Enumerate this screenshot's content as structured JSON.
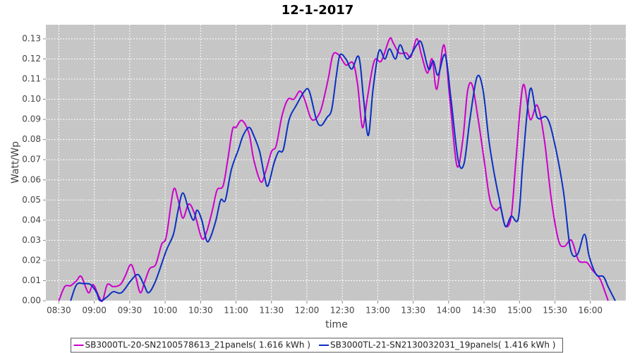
{
  "chart_data": {
    "type": "line",
    "title": "12-1-2017",
    "x_label": "time",
    "y_label": "Watt/Wp",
    "xlim": [
      499,
      990
    ],
    "ylim": [
      0,
      0.137
    ],
    "grid": true,
    "legend": "bottom",
    "xticks": [
      {
        "value": 510,
        "label": "08:30"
      },
      {
        "value": 540,
        "label": "09:00"
      },
      {
        "value": 570,
        "label": "09:30"
      },
      {
        "value": 600,
        "label": "10:00"
      },
      {
        "value": 630,
        "label": "10:30"
      },
      {
        "value": 660,
        "label": "11:00"
      },
      {
        "value": 690,
        "label": "11:30"
      },
      {
        "value": 720,
        "label": "12:00"
      },
      {
        "value": 750,
        "label": "12:30"
      },
      {
        "value": 780,
        "label": "13:00"
      },
      {
        "value": 810,
        "label": "13:30"
      },
      {
        "value": 840,
        "label": "14:00"
      },
      {
        "value": 870,
        "label": "14:30"
      },
      {
        "value": 900,
        "label": "15:00"
      },
      {
        "value": 930,
        "label": "15:30"
      },
      {
        "value": 960,
        "label": "16:00"
      }
    ],
    "yticks": [
      {
        "value": 0,
        "label": "0.00"
      },
      {
        "value": 0.01,
        "label": "0.01"
      },
      {
        "value": 0.02,
        "label": "0.02"
      },
      {
        "value": 0.03,
        "label": "0.03"
      },
      {
        "value": 0.04,
        "label": "0.04"
      },
      {
        "value": 0.05,
        "label": "0.05"
      },
      {
        "value": 0.06,
        "label": "0.06"
      },
      {
        "value": 0.07,
        "label": "0.07"
      },
      {
        "value": 0.08,
        "label": "0.08"
      },
      {
        "value": 0.09,
        "label": "0.09"
      },
      {
        "value": 0.1,
        "label": "0.10"
      },
      {
        "value": 0.11,
        "label": "0.11"
      },
      {
        "value": 0.12,
        "label": "0.12"
      },
      {
        "value": 0.13,
        "label": "0.13"
      }
    ],
    "series": [
      {
        "name": "SB3000TL-20-SN2100578613_21panels( 1.616 kWh )",
        "color": "#cc00cc",
        "x": [
          510,
          515,
          520,
          525,
          529,
          535,
          539,
          544,
          547,
          551,
          556,
          562,
          566,
          571,
          575,
          579,
          583,
          587,
          592,
          597,
          601,
          607,
          611,
          615,
          620,
          625,
          631,
          635,
          640,
          644,
          649,
          653,
          657,
          660,
          665,
          671,
          675,
          681,
          685,
          690,
          694,
          699,
          704,
          709,
          714,
          718,
          723,
          727,
          732,
          738,
          742,
          747,
          753,
          759,
          763,
          767,
          771,
          777,
          783,
          790,
          793,
          798,
          804,
          808,
          813,
          817,
          822,
          826,
          830,
          836,
          841,
          847,
          852,
          856,
          860,
          865,
          870,
          875,
          880,
          884,
          888,
          893,
          897,
          903,
          909,
          915,
          921,
          927,
          933,
          938,
          944,
          950,
          957,
          962,
          968,
          972,
          975
        ],
        "values": [
          0,
          0.007,
          0.0075,
          0.01,
          0.012,
          0.004,
          0.008,
          0.002,
          0,
          0.008,
          0.007,
          0.008,
          0.012,
          0.018,
          0.012,
          0.004,
          0.01,
          0.016,
          0.018,
          0.028,
          0.032,
          0.055,
          0.05,
          0.041,
          0.048,
          0.043,
          0.031,
          0.034,
          0.045,
          0.055,
          0.057,
          0.07,
          0.085,
          0.086,
          0.0895,
          0.083,
          0.07,
          0.059,
          0.064,
          0.074,
          0.077,
          0.092,
          0.1,
          0.1,
          0.104,
          0.1,
          0.091,
          0.09,
          0.095,
          0.11,
          0.122,
          0.122,
          0.117,
          0.118,
          0.107,
          0.086,
          0.1,
          0.119,
          0.119,
          0.13,
          0.128,
          0.123,
          0.123,
          0.121,
          0.13,
          0.122,
          0.113,
          0.12,
          0.105,
          0.127,
          0.1,
          0.067,
          0.08,
          0.104,
          0.107,
          0.09,
          0.07,
          0.05,
          0.045,
          0.046,
          0.037,
          0.042,
          0.07,
          0.107,
          0.09,
          0.097,
          0.08,
          0.05,
          0.03,
          0.027,
          0.03,
          0.02,
          0.019,
          0.015,
          0.011,
          0.005,
          0
        ]
      },
      {
        "name": "SB3000TL-21-SN2130032031_19panels( 1.416 kWh )",
        "color": "#0a2fc4",
        "x": [
          520,
          525,
          531,
          537,
          542,
          545,
          551,
          556,
          563,
          571,
          577,
          582,
          586,
          592,
          601,
          607,
          611,
          615,
          620,
          624,
          627,
          631,
          635,
          638,
          643,
          647,
          651,
          656,
          662,
          666,
          671,
          675,
          680,
          684,
          687,
          692,
          696,
          700,
          705,
          711,
          718,
          722,
          728,
          732,
          737,
          741,
          745,
          748,
          753,
          758,
          764,
          768,
          772,
          776,
          781,
          786,
          790,
          795,
          799,
          805,
          813,
          817,
          823,
          827,
          831,
          837,
          842,
          848,
          853,
          858,
          864,
          869,
          874,
          878,
          883,
          888,
          893,
          899,
          903,
          909,
          915,
          923,
          929,
          937,
          943,
          949,
          955,
          959,
          965,
          971,
          975,
          981
        ],
        "values": [
          0,
          0.008,
          0.0085,
          0.008,
          0.004,
          0,
          0.002,
          0.0045,
          0.004,
          0.01,
          0.013,
          0.008,
          0.004,
          0.01,
          0.025,
          0.033,
          0.045,
          0.0535,
          0.045,
          0.04,
          0.045,
          0.04,
          0.03,
          0.031,
          0.04,
          0.05,
          0.05,
          0.065,
          0.075,
          0.082,
          0.086,
          0.082,
          0.074,
          0.062,
          0.057,
          0.068,
          0.074,
          0.075,
          0.09,
          0.097,
          0.104,
          0.104,
          0.09,
          0.087,
          0.091,
          0.095,
          0.112,
          0.122,
          0.12,
          0.115,
          0.121,
          0.1,
          0.082,
          0.105,
          0.124,
          0.12,
          0.125,
          0.12,
          0.127,
          0.12,
          0.127,
          0.128,
          0.115,
          0.119,
          0.112,
          0.122,
          0.1,
          0.07,
          0.068,
          0.09,
          0.111,
          0.105,
          0.08,
          0.065,
          0.05,
          0.037,
          0.042,
          0.041,
          0.07,
          0.105,
          0.091,
          0.091,
          0.08,
          0.055,
          0.026,
          0.023,
          0.033,
          0.022,
          0.013,
          0.012,
          0.007,
          0
        ]
      }
    ]
  }
}
